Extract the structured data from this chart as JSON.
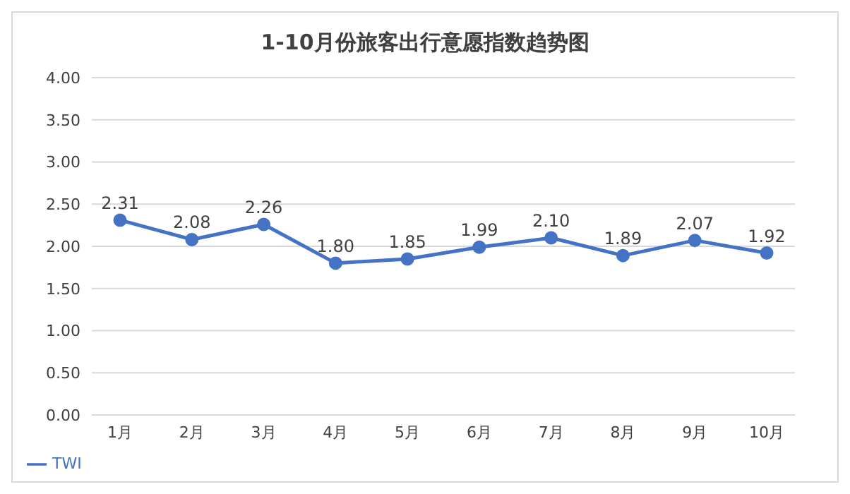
{
  "chart_data": {
    "type": "line",
    "title": "1-10月份旅客出行意愿指数趋势图",
    "categories": [
      "1月",
      "2月",
      "3月",
      "4月",
      "5月",
      "6月",
      "7月",
      "8月",
      "9月",
      "10月"
    ],
    "series": [
      {
        "name": "TWI",
        "color": "#4472c4",
        "values": [
          2.31,
          2.08,
          2.26,
          1.8,
          1.85,
          1.99,
          2.1,
          1.89,
          2.07,
          1.92
        ],
        "value_labels": [
          "2.31",
          "2.08",
          "2.26",
          "1.80",
          "1.85",
          "1.99",
          "2.10",
          "1.89",
          "2.07",
          "1.92"
        ]
      }
    ],
    "ylim": [
      0,
      4
    ],
    "yticks": [
      "0.00",
      "0.50",
      "1.00",
      "1.50",
      "2.00",
      "2.50",
      "3.00",
      "3.50",
      "4.00"
    ],
    "grid": "y",
    "legend": "bottom left",
    "marker": "circle",
    "line_style": "solid"
  }
}
